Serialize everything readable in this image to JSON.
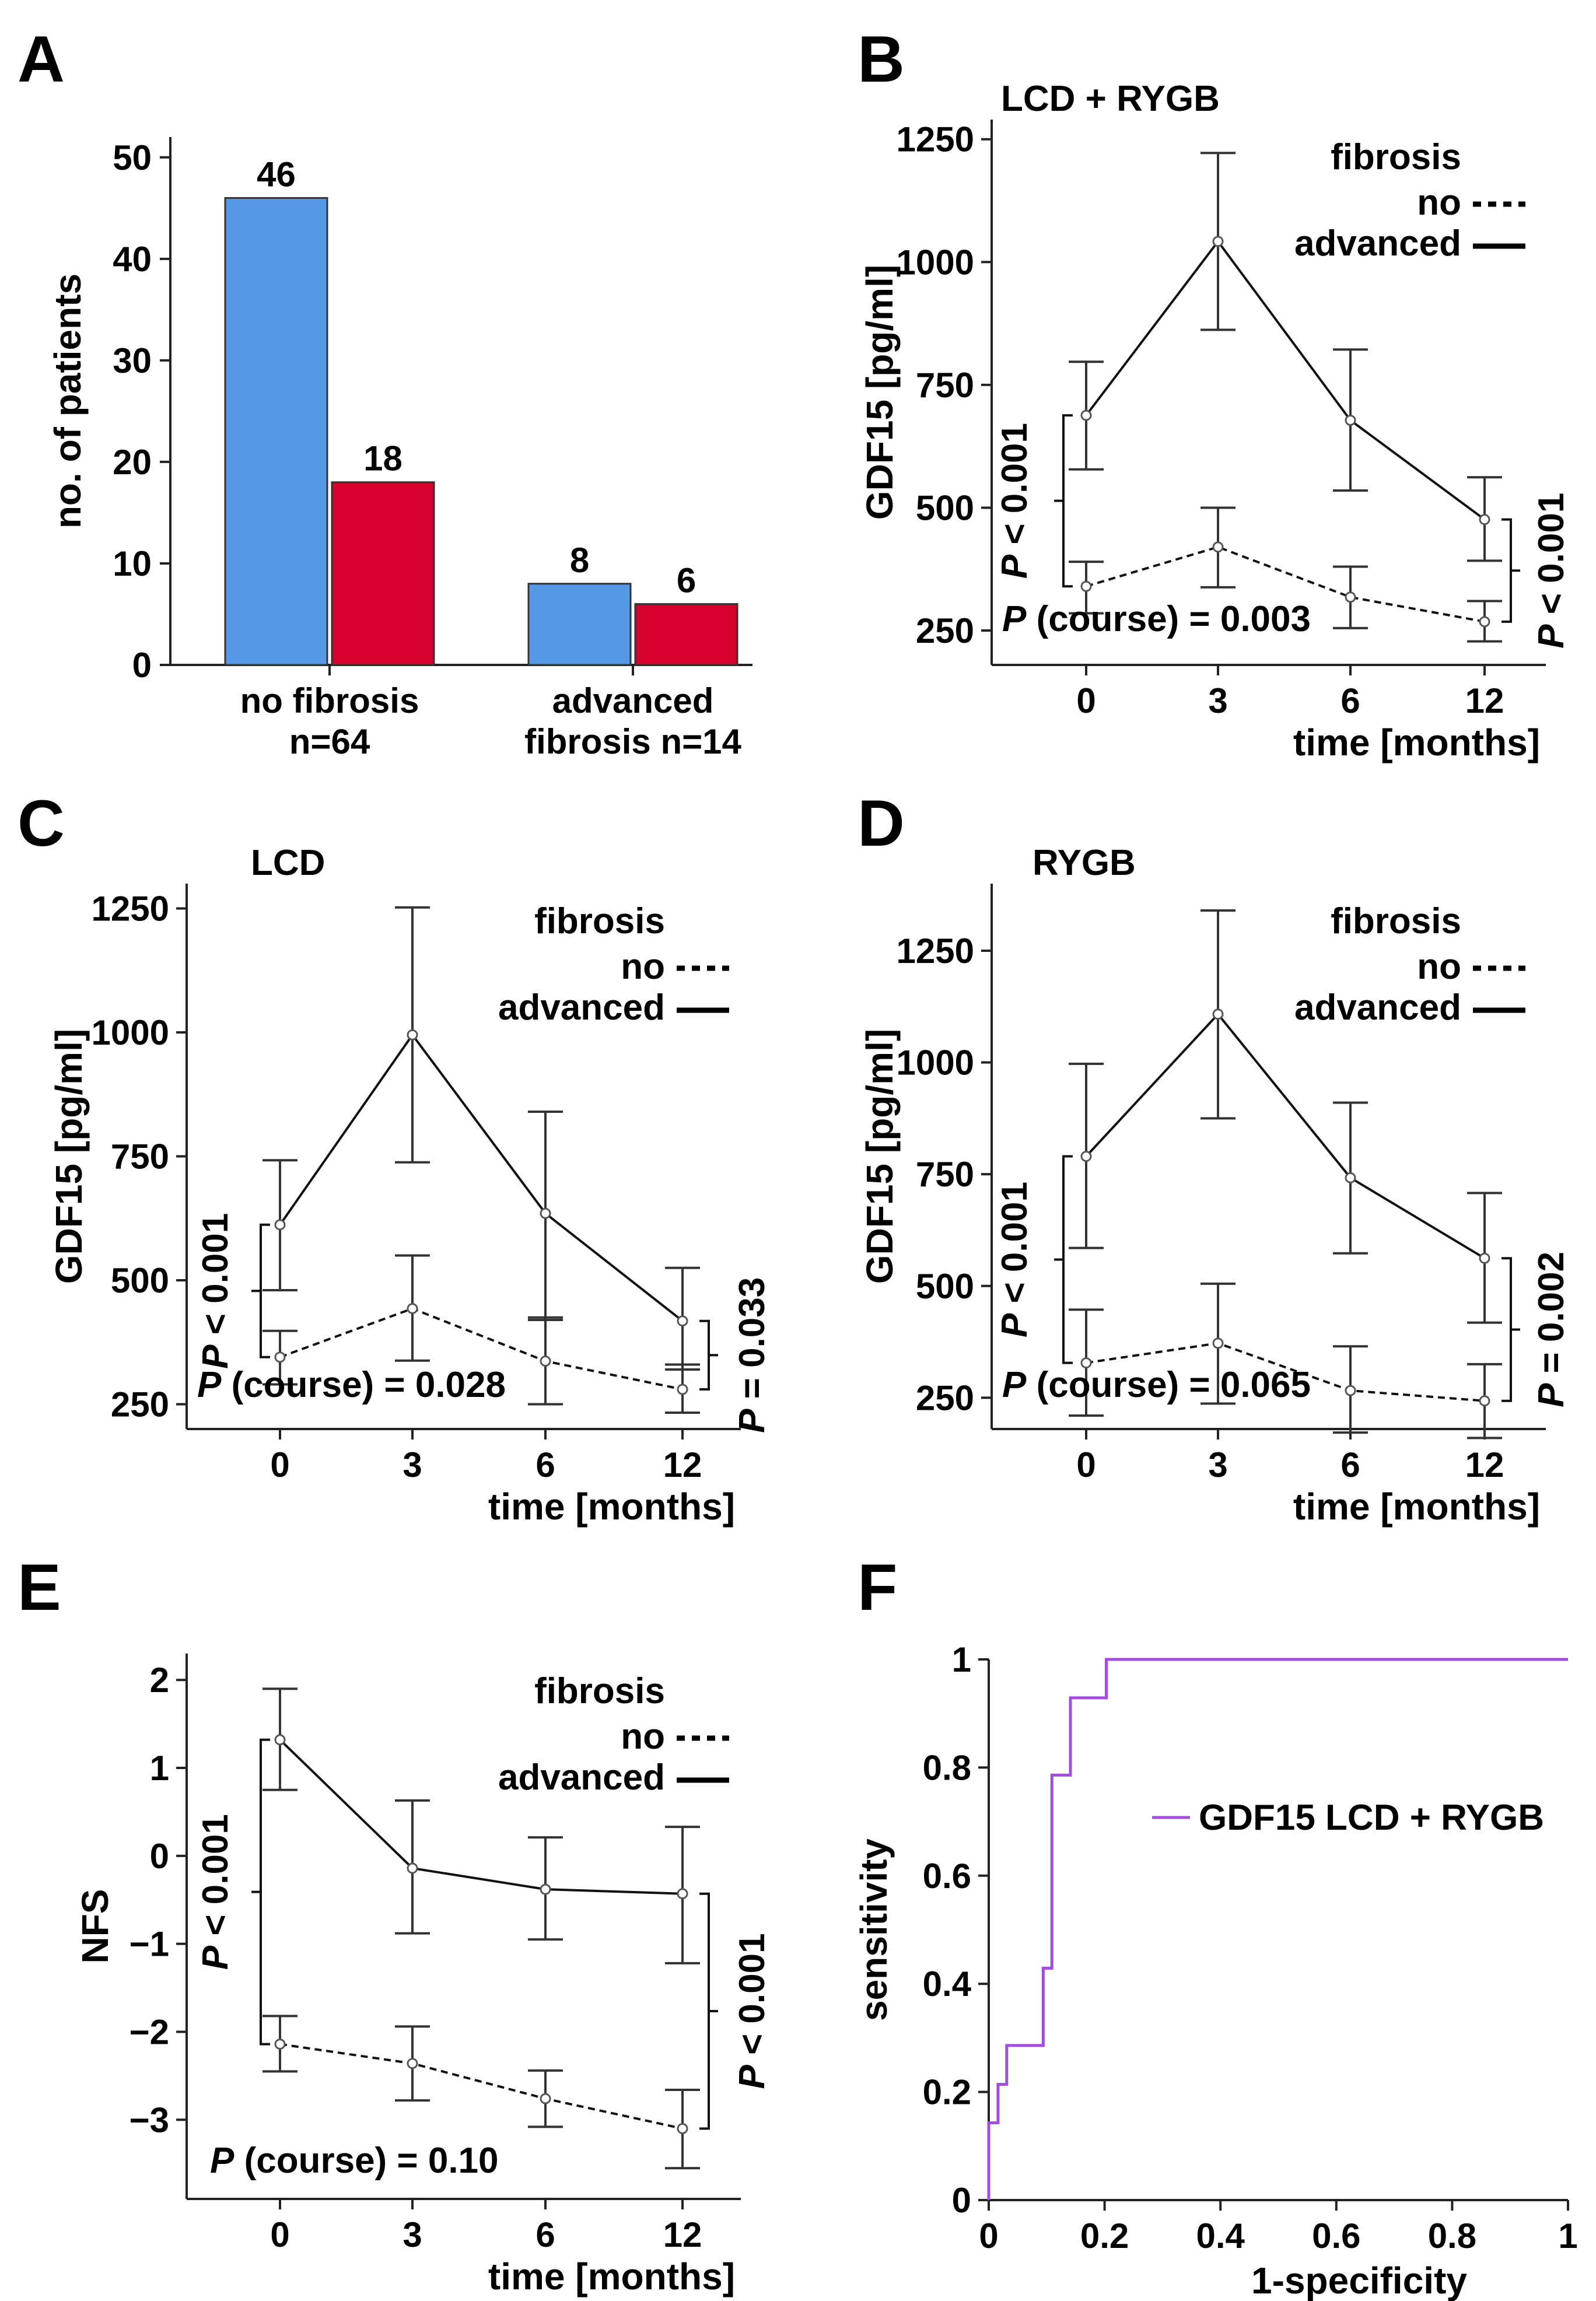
{
  "figure_labels": [
    "A",
    "B",
    "C",
    "D",
    "E",
    "F"
  ],
  "chart_data": [
    {
      "panel": "A",
      "type": "bar",
      "title": "",
      "xlabel": "",
      "ylabel": "no. of patients",
      "ylim": [
        0,
        52
      ],
      "yticks": [
        "0",
        "10",
        "20",
        "30",
        "40",
        "50"
      ],
      "categories": [
        {
          "line1": "no fibrosis",
          "line2": "n=64"
        },
        {
          "line1": "advanced",
          "line2": "fibrosis n=14"
        }
      ],
      "series": [
        {
          "name": "series 1",
          "color": "#5598E6",
          "values": [
            46,
            8
          ],
          "labels": [
            "46",
            "8"
          ]
        },
        {
          "name": "series 2",
          "color": "#D5002C",
          "values": [
            18,
            6
          ],
          "labels": [
            "18",
            "6"
          ]
        }
      ]
    },
    {
      "panel": "B",
      "type": "line",
      "title": "LCD + RYGB",
      "xlabel": "time [months]",
      "ylabel": "GDF15 [pg/ml]",
      "x": [
        0,
        3,
        6,
        12
      ],
      "xticks": [
        "0",
        "3",
        "6",
        "12"
      ],
      "ylim": [
        180,
        1290
      ],
      "yticks": [
        250,
        500,
        750,
        1000,
        1250
      ],
      "ytick_labels": [
        "250",
        "500",
        "750",
        "1000",
        "1250"
      ],
      "legend": {
        "title": "fibrosis",
        "no": "no",
        "advanced": "advanced"
      },
      "series": [
        {
          "name": "advanced",
          "style": "solid",
          "values": [
            688,
            1042,
            678,
            476
          ],
          "lower": [
            578,
            862,
            535,
            392
          ],
          "upper": [
            797,
            1222,
            822,
            562
          ]
        },
        {
          "name": "no",
          "style": "dashed",
          "values": [
            340,
            420,
            318,
            268
          ],
          "lower": [
            285,
            338,
            255,
            228
          ],
          "upper": [
            390,
            500,
            380,
            310
          ]
        }
      ],
      "bracket_left": {
        "text": "P < 0.001",
        "from": 688,
        "to": 340
      },
      "bracket_right": {
        "text": "P < 0.001",
        "from": 476,
        "to": 268
      },
      "course": {
        "prefix": "P",
        "text": " (course) = 0.003"
      }
    },
    {
      "panel": "C",
      "type": "line",
      "title": "LCD",
      "xlabel": "time [months]",
      "ylabel": "GDF15 [pg/ml]",
      "x": [
        0,
        3,
        6,
        12
      ],
      "xticks": [
        "0",
        "3",
        "6",
        "12"
      ],
      "ylim": [
        200,
        1300
      ],
      "yticks": [
        250,
        500,
        750,
        1000,
        1250
      ],
      "ytick_labels": [
        "250",
        "500",
        "750",
        "1000",
        "1250"
      ],
      "legend": {
        "title": "fibrosis",
        "no": "no",
        "advanced": "advanced"
      },
      "series": [
        {
          "name": "advanced",
          "style": "solid",
          "values": [
            612,
            995,
            635,
            418
          ],
          "lower": [
            480,
            738,
            420,
            320
          ],
          "upper": [
            742,
            1252,
            840,
            525
          ]
        },
        {
          "name": "no",
          "style": "dashed",
          "values": [
            345,
            443,
            337,
            280
          ],
          "lower": [
            290,
            338,
            250,
            233
          ],
          "upper": [
            398,
            550,
            425,
            330
          ]
        }
      ],
      "bracket_left": {
        "text": "P < 0.001",
        "from": 612,
        "to": 345
      },
      "bracket_right": {
        "text": "P = 0.033",
        "from": 418,
        "to": 280
      },
      "course": {
        "prefix": "P",
        "text": " (course) = 0.028"
      }
    },
    {
      "panel": "D",
      "type": "line",
      "title": "RYGB",
      "xlabel": "time [months]",
      "ylabel": "GDF15 [pg/ml]",
      "x": [
        0,
        3,
        6,
        12
      ],
      "xticks": [
        "0",
        "3",
        "6",
        "12"
      ],
      "ylim": [
        180,
        1400
      ],
      "yticks": [
        250,
        500,
        750,
        1000,
        1250
      ],
      "ytick_labels": [
        "250",
        "500",
        "750",
        "1000",
        "1250"
      ],
      "legend": {
        "title": "fibrosis",
        "no": "no",
        "advanced": "advanced"
      },
      "series": [
        {
          "name": "advanced",
          "style": "solid",
          "values": [
            790,
            1108,
            742,
            562
          ],
          "lower": [
            585,
            875,
            573,
            418
          ],
          "upper": [
            997,
            1340,
            910,
            708
          ]
        },
        {
          "name": "no",
          "style": "dashed",
          "values": [
            328,
            372,
            266,
            243
          ],
          "lower": [
            210,
            237,
            172,
            160
          ],
          "upper": [
            447,
            505,
            365,
            325
          ]
        }
      ],
      "bracket_left": {
        "text": "P < 0.001",
        "from": 790,
        "to": 328
      },
      "bracket_right": {
        "text": "P = 0.002",
        "from": 562,
        "to": 243
      },
      "course": {
        "prefix": "P",
        "text": " (course) = 0.065"
      }
    },
    {
      "panel": "E",
      "type": "line",
      "title": "",
      "xlabel": "time [months]",
      "ylabel": "NFS",
      "x": [
        0,
        3,
        6,
        12
      ],
      "xticks": [
        "0",
        "3",
        "6",
        "12"
      ],
      "ylim": [
        -3.9,
        2.3
      ],
      "yticks": [
        -3,
        -2,
        -1,
        0,
        1,
        2
      ],
      "ytick_labels": [
        "−3",
        "−2",
        "−1",
        "0",
        "1",
        "2"
      ],
      "legend": {
        "title": "fibrosis",
        "no": "no",
        "advanced": "advanced"
      },
      "series": [
        {
          "name": "advanced",
          "style": "solid",
          "values": [
            1.32,
            -0.14,
            -0.38,
            -0.43
          ],
          "lower": [
            0.75,
            -0.88,
            -0.95,
            -1.22
          ],
          "upper": [
            1.9,
            0.63,
            0.21,
            0.33
          ]
        },
        {
          "name": "no",
          "style": "dashed",
          "values": [
            -2.14,
            -2.36,
            -2.76,
            -3.1
          ],
          "lower": [
            -2.45,
            -2.78,
            -3.08,
            -3.55
          ],
          "upper": [
            -1.82,
            -1.94,
            -2.44,
            -2.66
          ]
        }
      ],
      "bracket_left": {
        "text": "P < 0.001",
        "from": 1.32,
        "to": -2.14
      },
      "bracket_right": {
        "text": "P < 0.001",
        "from": -0.43,
        "to": -3.1
      },
      "course": {
        "prefix": "P",
        "text": " (course) = 0.10"
      }
    },
    {
      "panel": "F",
      "type": "line",
      "title": "",
      "xlabel": "1-specificity",
      "ylabel": "sensitivity",
      "xlim": [
        0,
        1
      ],
      "ylim": [
        0,
        1
      ],
      "ticks": [
        0,
        0.2,
        0.4,
        0.6,
        0.8,
        1
      ],
      "tick_labels": [
        "0",
        "0.2",
        "0.4",
        "0.6",
        "0.8",
        "1"
      ],
      "legend": "GDF15 LCD + RYGB",
      "color": "#A24DE0",
      "series": [
        {
          "name": "GDF15 LCD + RYGB",
          "x": [
            0,
            0,
            0.016,
            0.016,
            0.031,
            0.031,
            0.094,
            0.094,
            0.109,
            0.109,
            0.141,
            0.141,
            0.203,
            0.203,
            1
          ],
          "y": [
            0,
            0.143,
            0.143,
            0.214,
            0.214,
            0.286,
            0.286,
            0.429,
            0.429,
            0.786,
            0.786,
            0.929,
            0.929,
            1,
            1
          ]
        }
      ]
    }
  ]
}
